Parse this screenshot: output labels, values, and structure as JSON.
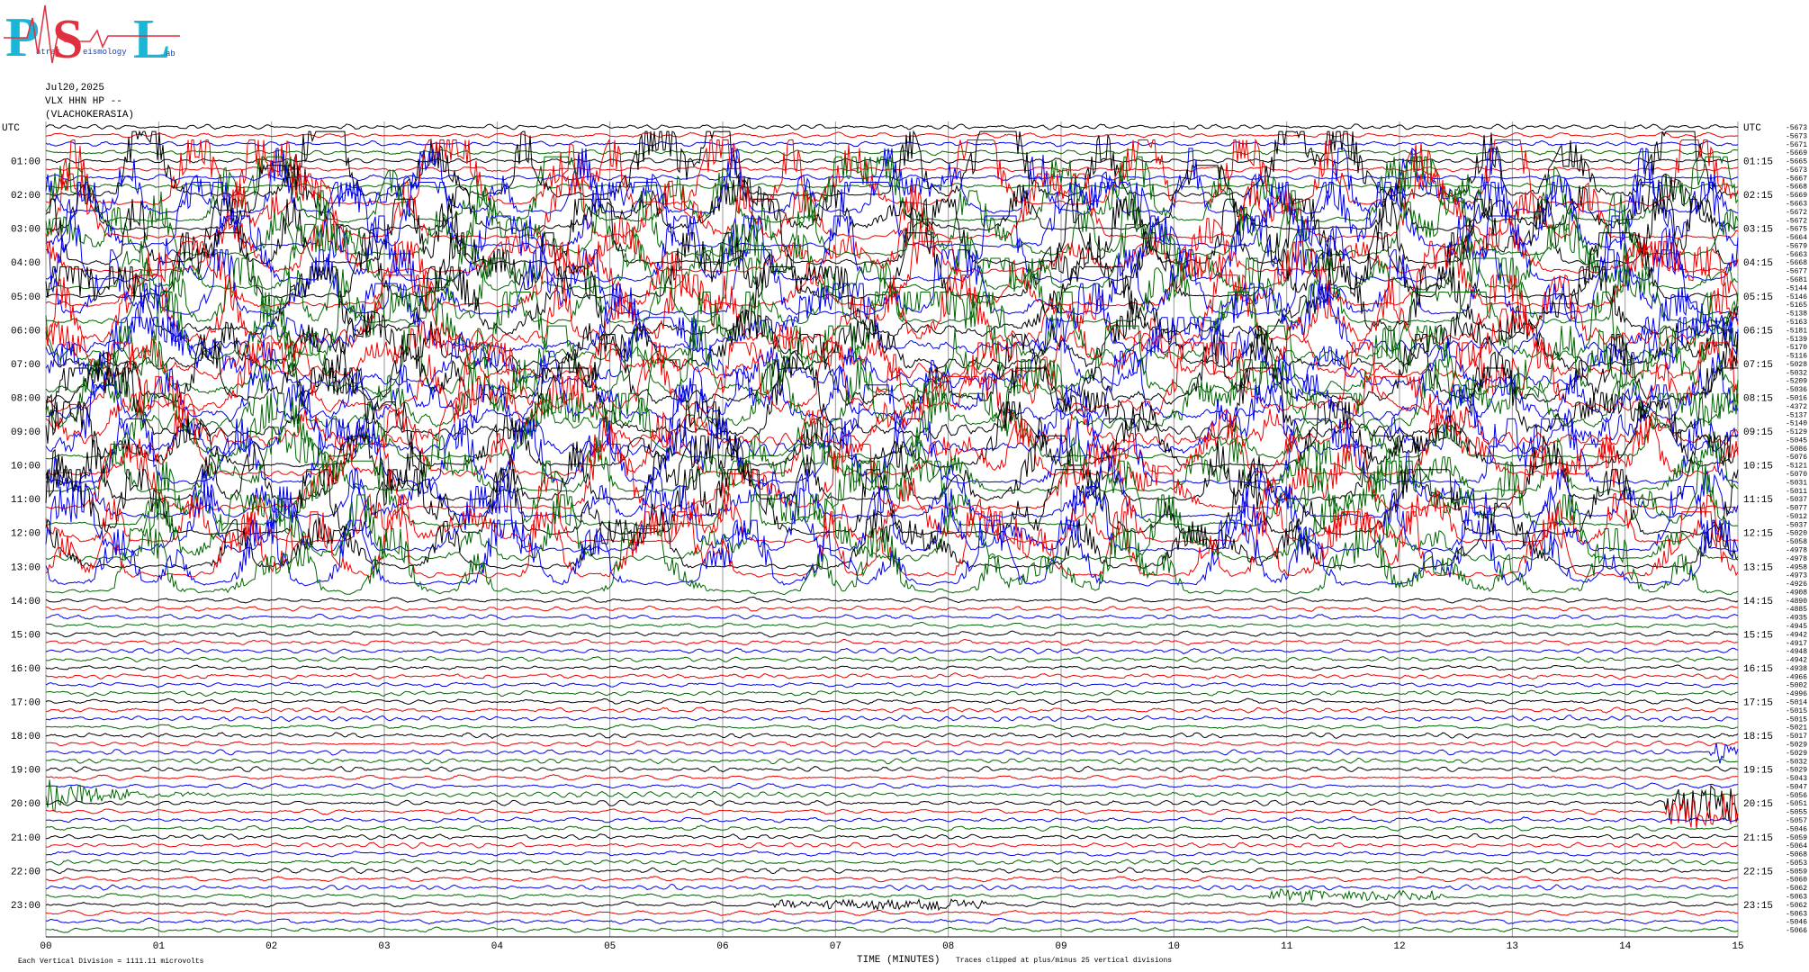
{
  "logo": {
    "p": "P",
    "p_small": "atras",
    "s": "S",
    "s_small": "eismology",
    "l": "L",
    "l_small": "ab"
  },
  "header": {
    "date": "Jul20,2025",
    "station": "VLX HHN HP --",
    "location": "(VLACHOKERASIA)"
  },
  "left_labels": [
    "UTC",
    "01:00",
    "02:00",
    "03:00",
    "04:00",
    "05:00",
    "06:00",
    "07:00",
    "08:00",
    "09:00",
    "10:00",
    "11:00",
    "12:00",
    "13:00",
    "14:00",
    "15:00",
    "16:00",
    "17:00",
    "18:00",
    "19:00",
    "20:00",
    "21:00",
    "22:00",
    "23:00"
  ],
  "right_labels": [
    "UTC",
    "01:15",
    "02:15",
    "03:15",
    "04:15",
    "05:15",
    "06:15",
    "07:15",
    "08:15",
    "09:15",
    "10:15",
    "11:15",
    "12:15",
    "13:15",
    "14:15",
    "15:15",
    "16:15",
    "17:15",
    "18:15",
    "19:15",
    "20:15",
    "21:15",
    "22:15",
    "23:15"
  ],
  "row_values": [
    -5673,
    -5673,
    -5671,
    -5669,
    -5665,
    -5673,
    -5667,
    -5668,
    -5669,
    -5663,
    -5672,
    -5672,
    -5675,
    -5664,
    -5679,
    -5663,
    -5668,
    -5677,
    -5681,
    -5144,
    -5146,
    -5165,
    -5138,
    -5163,
    -5181,
    -5139,
    -5170,
    -5116,
    -5028,
    -5032,
    -5209,
    -5036,
    -5016,
    -4372,
    -5137,
    -5140,
    -5129,
    -5045,
    -5086,
    -5076,
    -5121,
    -5070,
    -5031,
    -5011,
    -5037,
    -5077,
    -5012,
    -5037,
    -5020,
    -5058,
    -4978,
    -4978,
    -4958,
    -4973,
    -4926,
    -4908,
    -4890,
    -4885,
    -4935,
    -4945,
    -4942,
    -4917,
    -4948,
    -4942,
    -4938,
    -4966,
    -5002,
    -4996,
    -5014,
    -5015,
    -5015,
    -5021,
    -5017,
    -5029,
    -5029,
    -5032,
    -5029,
    -5043,
    -5047,
    -5056,
    -5051,
    -5055,
    -5057,
    -5046,
    -5059,
    -5064,
    -5068,
    -5053,
    -5059,
    -5060,
    -5062,
    -5063,
    -5062,
    -5063,
    -5046,
    -5066
  ],
  "x_ticks": [
    "00",
    "01",
    "02",
    "03",
    "04",
    "05",
    "06",
    "07",
    "08",
    "09",
    "10",
    "11",
    "12",
    "13",
    "14",
    "15"
  ],
  "footer": {
    "scale": "Each Vertical Division = 1111.11 microvolts",
    "x_label": "TIME (MINUTES)",
    "clip_note": "Traces clipped at plus/minus 25 vertical divisions"
  }
}
